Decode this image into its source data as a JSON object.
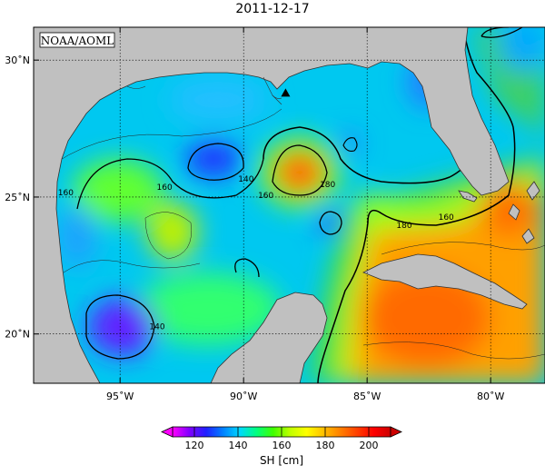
{
  "title": "2011-12-17",
  "credit": "NOAA/AOML",
  "map": {
    "lon_range": [
      -98.5,
      -77.8
    ],
    "lat_range": [
      18.2,
      31.2
    ],
    "lon_ticks": [
      {
        "value": -95,
        "label": "95˚W"
      },
      {
        "value": -90,
        "label": "90˚W"
      },
      {
        "value": -85,
        "label": "85˚W"
      },
      {
        "value": -80,
        "label": "80˚W"
      }
    ],
    "lat_ticks": [
      {
        "value": 30,
        "label": "30˚N"
      },
      {
        "value": 25,
        "label": "25˚N"
      },
      {
        "value": 20,
        "label": "20˚N"
      }
    ],
    "contour_labels": [
      {
        "text": "160",
        "lon": -97.2,
        "lat": 25.1
      },
      {
        "text": "160",
        "lon": -93.2,
        "lat": 25.3
      },
      {
        "text": "140",
        "lon": -89.9,
        "lat": 25.6
      },
      {
        "text": "160",
        "lon": -89.1,
        "lat": 25.0
      },
      {
        "text": "180",
        "lon": -86.6,
        "lat": 25.4
      },
      {
        "text": "160",
        "lon": -81.8,
        "lat": 24.2
      },
      {
        "text": "180",
        "lon": -83.5,
        "lat": 23.9
      },
      {
        "text": "140",
        "lon": -93.5,
        "lat": 20.2
      }
    ],
    "marker": {
      "shape": "triangle",
      "lon": -88.3,
      "lat": 28.8
    },
    "colors": {
      "land": "#c0c0c0",
      "coast": "#333333"
    }
  },
  "colorbar": {
    "title": "SH [cm]",
    "ticks": [
      120,
      140,
      160,
      180,
      200
    ],
    "range": [
      110,
      210
    ],
    "colors": [
      "#ff00ff",
      "#8000ff",
      "#2020ff",
      "#0080ff",
      "#00d8ff",
      "#00ff80",
      "#40ff00",
      "#c0ff00",
      "#ffff00",
      "#ffc000",
      "#ff8000",
      "#ff4000",
      "#ff0000",
      "#cc0000"
    ]
  }
}
